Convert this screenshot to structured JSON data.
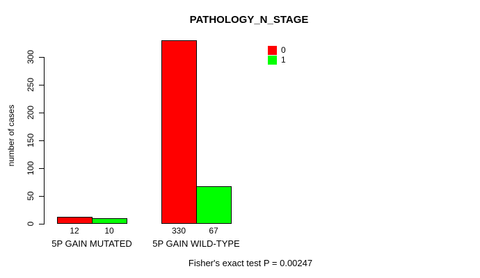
{
  "chart_data": {
    "type": "bar",
    "title": "PATHOLOGY_N_STAGE",
    "ylabel": "number of cases",
    "xlabel": "",
    "categories": [
      "5P GAIN MUTATED",
      "5P GAIN WILD-TYPE"
    ],
    "series": [
      {
        "name": "0",
        "color": "#ff0000",
        "values": [
          12,
          330
        ]
      },
      {
        "name": "1",
        "color": "#00ff00",
        "values": [
          10,
          67
        ]
      }
    ],
    "bar_value_labels": [
      [
        12,
        10
      ],
      [
        330,
        67
      ]
    ],
    "yticks": [
      0,
      50,
      100,
      150,
      200,
      250,
      300
    ],
    "ylim": [
      0,
      330
    ],
    "grid": false,
    "legend_position": "top-right",
    "annotation": "Fisher's exact test P = 0.00247"
  }
}
